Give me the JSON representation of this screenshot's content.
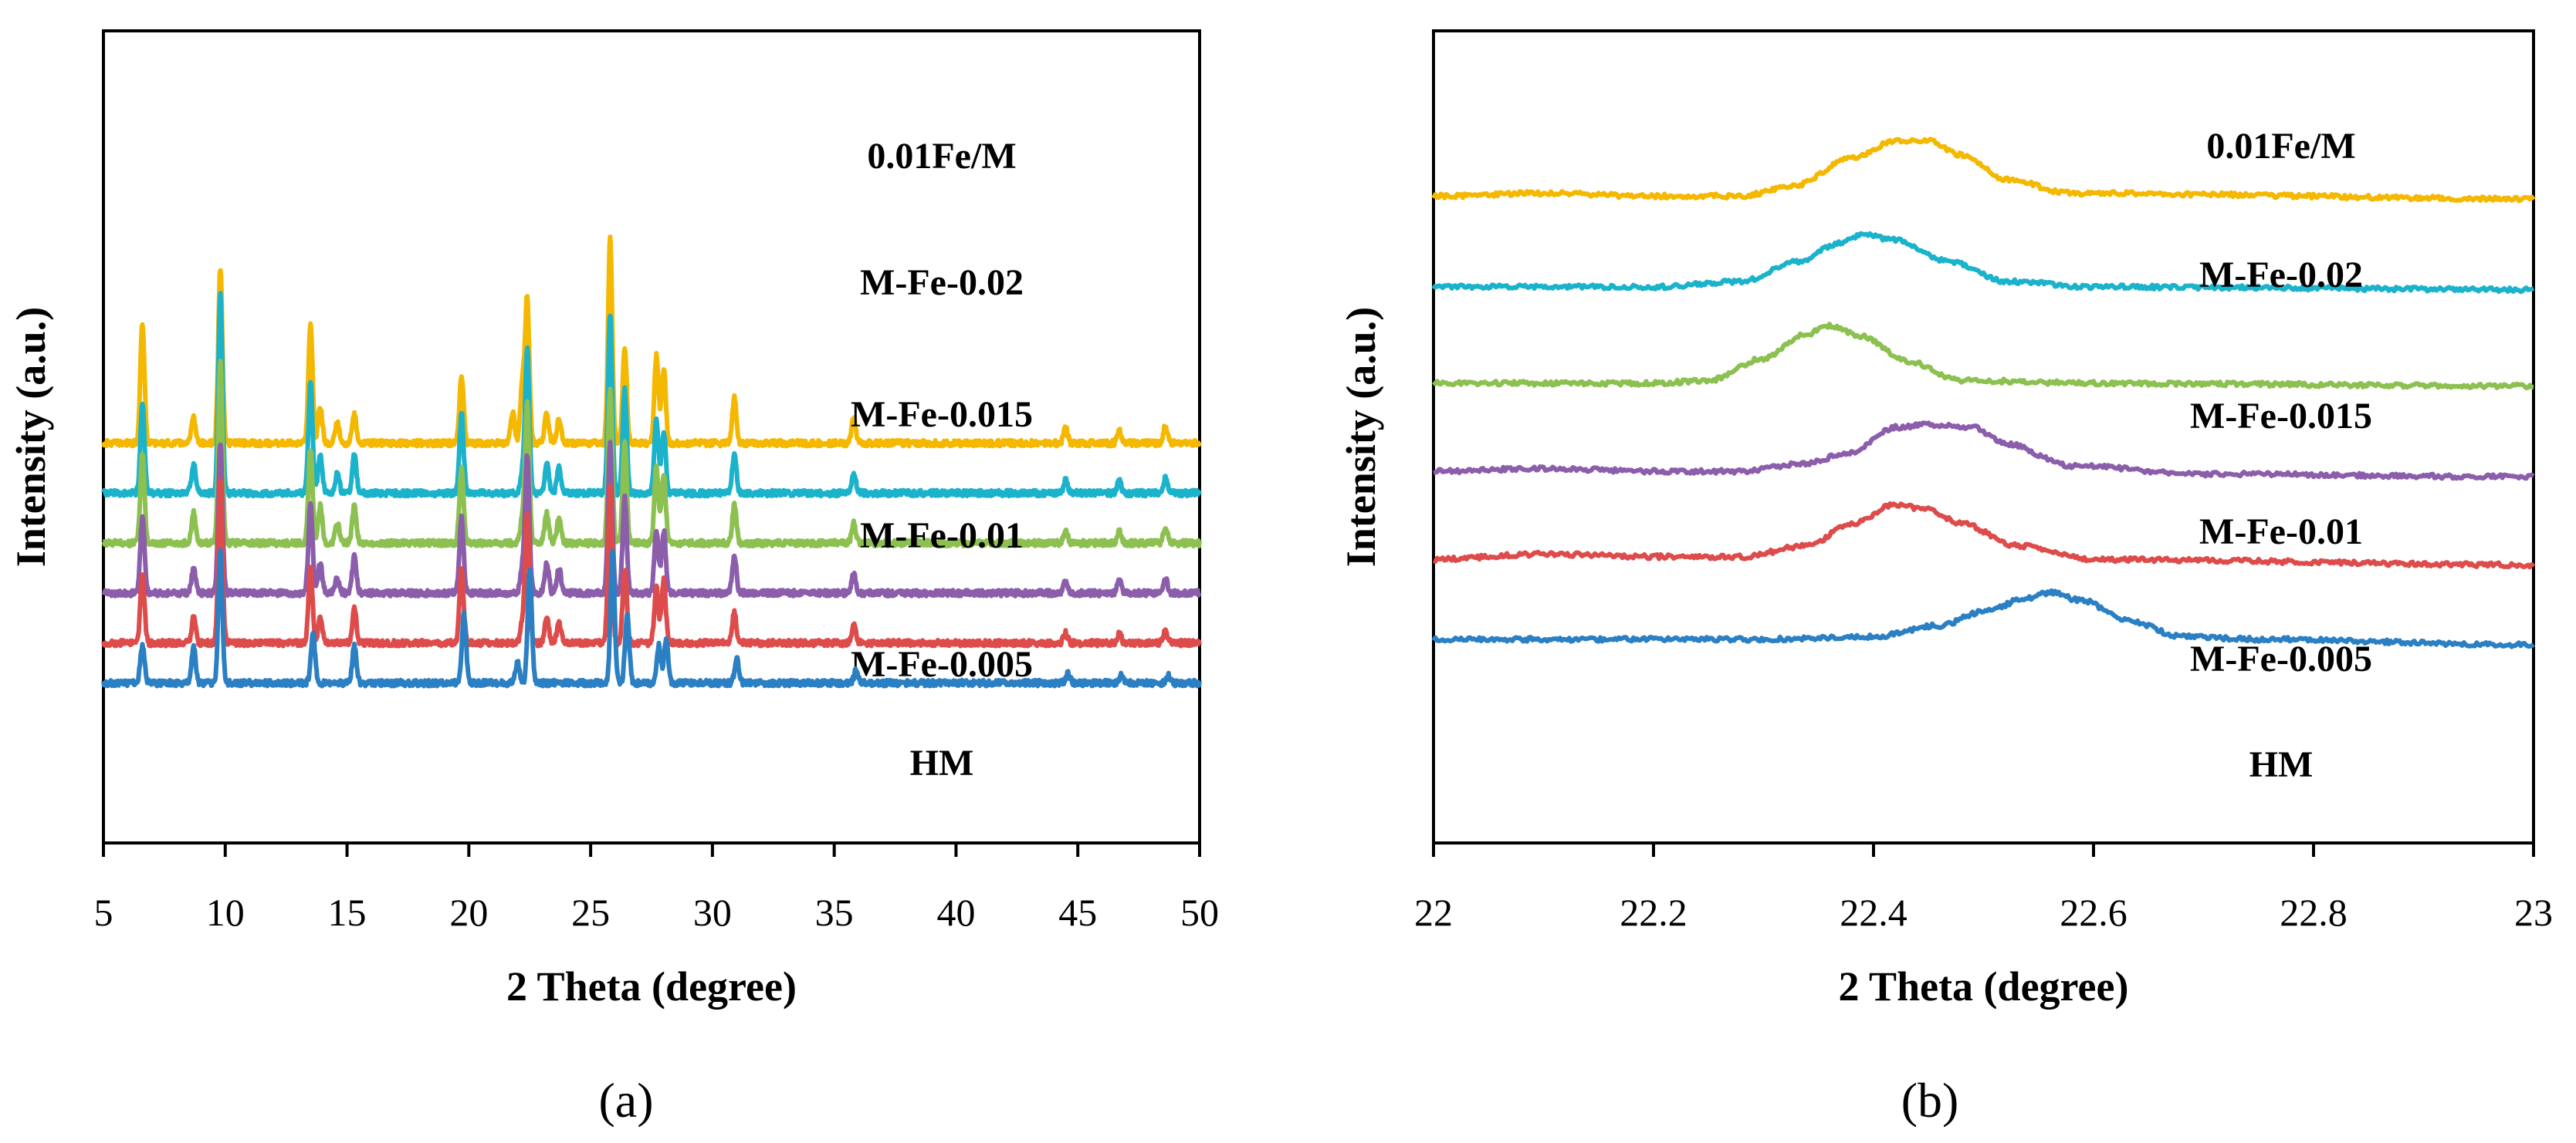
{
  "chart_data": [
    {
      "type": "line",
      "panel_label": "(a)",
      "title": "",
      "xlabel": "2 Theta (degree)",
      "ylabel": "Intensity (a.u.)",
      "xlim": [
        5,
        50
      ],
      "xticks": [
        5,
        10,
        15,
        20,
        25,
        30,
        35,
        40,
        45,
        50
      ],
      "xtick_labels": [
        "5",
        "10",
        "15",
        "20",
        "25",
        "30",
        "35",
        "40",
        "45",
        "50"
      ],
      "y_ticks_shown": false,
      "grid": false,
      "peak_width": 0.12,
      "series": [
        {
          "name": "0.01Fe/M",
          "color": "#F5B800",
          "baseline": 0,
          "noise": 1.2,
          "peaks": [
            [
              6.6,
              48
            ],
            [
              8.7,
              10
            ],
            [
              9.8,
              70
            ],
            [
              13.5,
              48
            ],
            [
              13.9,
              15
            ],
            [
              14.6,
              8
            ],
            [
              15.3,
              12
            ],
            [
              19.7,
              27
            ],
            [
              21.8,
              12
            ],
            [
              22.2,
              24
            ],
            [
              22.4,
              57
            ],
            [
              23.2,
              12
            ],
            [
              23.7,
              10
            ],
            [
              25.8,
              82
            ],
            [
              26.4,
              38
            ],
            [
              27.7,
              35
            ],
            [
              28.0,
              30
            ],
            [
              30.9,
              18
            ],
            [
              35.8,
              10
            ],
            [
              44.5,
              6
            ],
            [
              46.7,
              5
            ],
            [
              48.6,
              7
            ]
          ]
        },
        {
          "name": "M-Fe-0.02",
          "color": "#1BB2CC",
          "baseline": -20,
          "noise": 1.2,
          "peaks": [
            [
              6.6,
              35
            ],
            [
              8.7,
              12
            ],
            [
              9.8,
              80
            ],
            [
              13.5,
              45
            ],
            [
              13.9,
              15
            ],
            [
              14.6,
              8
            ],
            [
              15.3,
              15
            ],
            [
              19.7,
              32
            ],
            [
              22.2,
              8
            ],
            [
              22.4,
              57
            ],
            [
              23.2,
              12
            ],
            [
              23.7,
              10
            ],
            [
              25.8,
              72
            ],
            [
              26.4,
              42
            ],
            [
              27.7,
              30
            ],
            [
              28.0,
              25
            ],
            [
              30.9,
              16
            ],
            [
              35.8,
              8
            ],
            [
              44.5,
              5
            ],
            [
              46.7,
              5
            ],
            [
              48.6,
              6
            ]
          ]
        },
        {
          "name": "M-Fe-0.015",
          "color": "#8CC050",
          "baseline": -40,
          "noise": 1.2,
          "peaks": [
            [
              6.6,
              36
            ],
            [
              8.7,
              12
            ],
            [
              9.8,
              72
            ],
            [
              13.5,
              38
            ],
            [
              13.9,
              15
            ],
            [
              14.6,
              8
            ],
            [
              15.3,
              15
            ],
            [
              19.7,
              30
            ],
            [
              22.2,
              10
            ],
            [
              22.4,
              55
            ],
            [
              23.2,
              12
            ],
            [
              23.7,
              10
            ],
            [
              25.8,
              62
            ],
            [
              26.4,
              40
            ],
            [
              27.7,
              30
            ],
            [
              28.0,
              28
            ],
            [
              30.9,
              15
            ],
            [
              35.8,
              8
            ],
            [
              44.5,
              5
            ],
            [
              46.7,
              5
            ],
            [
              48.6,
              6
            ]
          ]
        },
        {
          "name": "M-Fe-0.01",
          "color": "#8B5DAB",
          "baseline": -60,
          "noise": 1.2,
          "peaks": [
            [
              6.6,
              30
            ],
            [
              8.7,
              10
            ],
            [
              9.8,
              60
            ],
            [
              13.5,
              35
            ],
            [
              13.9,
              12
            ],
            [
              14.6,
              6
            ],
            [
              15.3,
              15
            ],
            [
              19.7,
              30
            ],
            [
              22.2,
              10
            ],
            [
              22.4,
              55
            ],
            [
              23.2,
              12
            ],
            [
              23.7,
              10
            ],
            [
              25.8,
              60
            ],
            [
              26.4,
              38
            ],
            [
              27.7,
              25
            ],
            [
              28.0,
              25
            ],
            [
              30.9,
              15
            ],
            [
              35.8,
              8
            ],
            [
              44.5,
              5
            ],
            [
              46.7,
              5
            ],
            [
              48.6,
              6
            ]
          ]
        },
        {
          "name": "M-Fe-0.005",
          "color": "#DE4B4B",
          "baseline": -80,
          "noise": 1.2,
          "peaks": [
            [
              6.6,
              28
            ],
            [
              8.7,
              10
            ],
            [
              9.8,
              65
            ],
            [
              13.5,
              30
            ],
            [
              13.9,
              10
            ],
            [
              15.3,
              14
            ],
            [
              19.7,
              30
            ],
            [
              22.2,
              8
            ],
            [
              22.4,
              52
            ],
            [
              23.2,
              10
            ],
            [
              23.7,
              8
            ],
            [
              25.8,
              62
            ],
            [
              26.4,
              30
            ],
            [
              27.7,
              22
            ],
            [
              28.0,
              25
            ],
            [
              30.9,
              12
            ],
            [
              35.8,
              7
            ],
            [
              44.5,
              4
            ],
            [
              46.7,
              4
            ],
            [
              48.6,
              5
            ]
          ]
        },
        {
          "name": "HM",
          "color": "#2B7FC3",
          "baseline": -96,
          "noise": 1.2,
          "peaks": [
            [
              6.6,
              15
            ],
            [
              8.7,
              15
            ],
            [
              9.8,
              52
            ],
            [
              13.6,
              20
            ],
            [
              15.3,
              15
            ],
            [
              19.8,
              28
            ],
            [
              22.0,
              8
            ],
            [
              22.5,
              45
            ],
            [
              25.9,
              52
            ],
            [
              26.5,
              28
            ],
            [
              27.8,
              15
            ],
            [
              28.1,
              17
            ],
            [
              31.0,
              10
            ],
            [
              35.9,
              5
            ],
            [
              44.6,
              4
            ],
            [
              46.8,
              3
            ],
            [
              48.7,
              3
            ]
          ]
        }
      ]
    },
    {
      "type": "line",
      "panel_label": "(b)",
      "title": "",
      "xlabel": "2 Theta (degree)",
      "ylabel": "Intensity (a.u.)",
      "xlim": [
        22,
        23
      ],
      "xticks": [
        22,
        22.2,
        22.4,
        22.6,
        22.8,
        23
      ],
      "xtick_labels": [
        "22",
        "22.2",
        "22.4",
        "22.6",
        "22.8",
        "23"
      ],
      "y_ticks_shown": false,
      "grid": false,
      "series": [
        {
          "name": "0.01Fe/M",
          "color": "#F5B800",
          "noise": 0.8,
          "points": [
            [
              22.0,
              0
            ],
            [
              22.1,
              1
            ],
            [
              22.2,
              0
            ],
            [
              22.28,
              0
            ],
            [
              22.33,
              4
            ],
            [
              22.38,
              14
            ],
            [
              22.42,
              20
            ],
            [
              22.45,
              20
            ],
            [
              22.48,
              15
            ],
            [
              22.52,
              6
            ],
            [
              22.58,
              1
            ],
            [
              23.0,
              -1
            ]
          ]
        },
        {
          "name": "M-Fe-0.02",
          "color": "#1BB2CC",
          "noise": 0.8,
          "points": [
            [
              22.0,
              -33
            ],
            [
              22.2,
              -33
            ],
            [
              22.28,
              -31
            ],
            [
              22.33,
              -24
            ],
            [
              22.37,
              -17
            ],
            [
              22.39,
              -14
            ],
            [
              22.42,
              -16
            ],
            [
              22.47,
              -24
            ],
            [
              22.52,
              -31
            ],
            [
              22.6,
              -33
            ],
            [
              23.0,
              -34
            ]
          ]
        },
        {
          "name": "M-Fe-0.015",
          "color": "#8CC050",
          "noise": 0.8,
          "points": [
            [
              22.0,
              -68
            ],
            [
              22.2,
              -68
            ],
            [
              22.25,
              -67
            ],
            [
              22.3,
              -59
            ],
            [
              22.34,
              -50
            ],
            [
              22.36,
              -47
            ],
            [
              22.39,
              -51
            ],
            [
              22.43,
              -60
            ],
            [
              22.48,
              -67
            ],
            [
              22.6,
              -68
            ],
            [
              23.0,
              -69
            ]
          ]
        },
        {
          "name": "M-Fe-0.01",
          "color": "#8B5DAB",
          "noise": 0.8,
          "points": [
            [
              22.0,
              -100
            ],
            [
              22.1,
              -99
            ],
            [
              22.2,
              -100
            ],
            [
              22.28,
              -100
            ],
            [
              22.34,
              -97
            ],
            [
              22.38,
              -93
            ],
            [
              22.42,
              -84
            ],
            [
              22.45,
              -83
            ],
            [
              22.49,
              -84
            ],
            [
              22.52,
              -90
            ],
            [
              22.58,
              -98
            ],
            [
              22.7,
              -101
            ],
            [
              23.0,
              -102
            ]
          ]
        },
        {
          "name": "M-Fe-0.005",
          "color": "#DE4B4B",
          "noise": 0.8,
          "points": [
            [
              22.0,
              -132
            ],
            [
              22.1,
              -130
            ],
            [
              22.2,
              -131
            ],
            [
              22.28,
              -131
            ],
            [
              22.34,
              -127
            ],
            [
              22.38,
              -119
            ],
            [
              22.42,
              -112
            ],
            [
              22.45,
              -114
            ],
            [
              22.48,
              -119
            ],
            [
              22.53,
              -127
            ],
            [
              22.6,
              -132
            ],
            [
              23.0,
              -134
            ]
          ]
        },
        {
          "name": "HM",
          "color": "#2B7FC3",
          "noise": 0.8,
          "points": [
            [
              22.0,
              -161
            ],
            [
              22.3,
              -161
            ],
            [
              22.4,
              -160
            ],
            [
              22.46,
              -156
            ],
            [
              22.5,
              -151
            ],
            [
              22.54,
              -146
            ],
            [
              22.56,
              -144
            ],
            [
              22.59,
              -147
            ],
            [
              22.63,
              -154
            ],
            [
              22.68,
              -160
            ],
            [
              22.75,
              -161
            ],
            [
              23.0,
              -163
            ]
          ]
        }
      ]
    }
  ]
}
